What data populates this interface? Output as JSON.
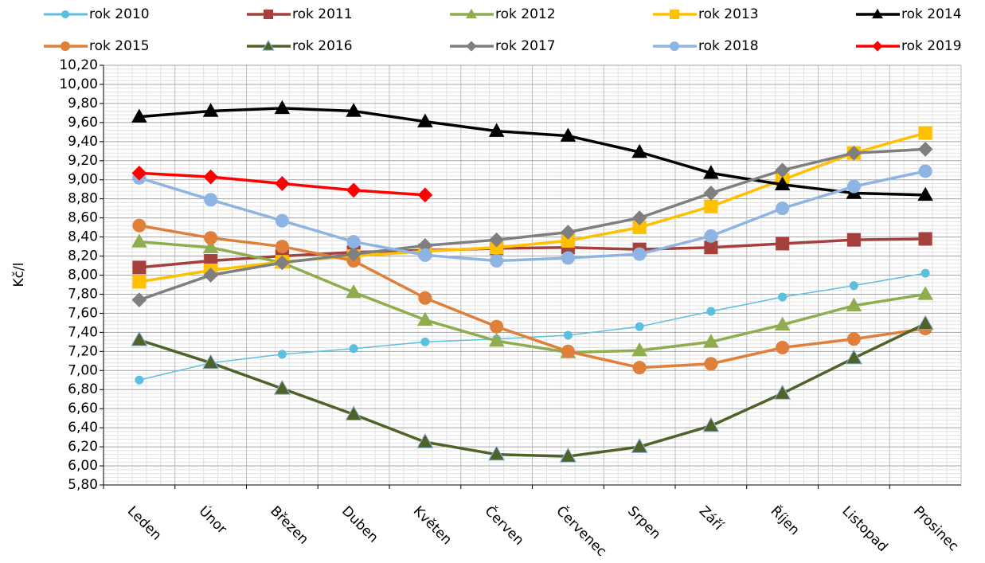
{
  "chart_data": {
    "type": "line",
    "y_label": "Kč/l",
    "categories": [
      "Leden",
      "Únor",
      "Březen",
      "Duben",
      "Květen",
      "Červen",
      "Červenec",
      "Srpen",
      "Září",
      "Říjen",
      "Listopad",
      "Prosinec"
    ],
    "ylim": [
      5.8,
      10.2
    ],
    "yticks": [
      {
        "value": 5.8,
        "label": "5,80"
      },
      {
        "value": 6.0,
        "label": "6,00"
      },
      {
        "value": 6.2,
        "label": "6,20"
      },
      {
        "value": 6.4,
        "label": "6,40"
      },
      {
        "value": 6.6,
        "label": "6,60"
      },
      {
        "value": 6.8,
        "label": "6,80"
      },
      {
        "value": 7.0,
        "label": "7,00"
      },
      {
        "value": 7.2,
        "label": "7,20"
      },
      {
        "value": 7.4,
        "label": "7,40"
      },
      {
        "value": 7.6,
        "label": "7,60"
      },
      {
        "value": 7.8,
        "label": "7,80"
      },
      {
        "value": 8.0,
        "label": "8,00"
      },
      {
        "value": 8.2,
        "label": "8,20"
      },
      {
        "value": 8.4,
        "label": "8,40"
      },
      {
        "value": 8.6,
        "label": "8,60"
      },
      {
        "value": 8.8,
        "label": "8,80"
      },
      {
        "value": 9.0,
        "label": "9,00"
      },
      {
        "value": 9.2,
        "label": "9,20"
      },
      {
        "value": 9.4,
        "label": "9,40"
      },
      {
        "value": 9.6,
        "label": "9,60"
      },
      {
        "value": 9.8,
        "label": "9,80"
      },
      {
        "value": 10.0,
        "label": "10,00"
      },
      {
        "value": 10.2,
        "label": "10,20"
      }
    ],
    "grid": true,
    "legend": "top",
    "series": [
      {
        "name": "rok 2010",
        "color": "#5bbfe0",
        "marker": "circle",
        "line_width": 1.5,
        "values": [
          6.9,
          7.08,
          7.17,
          7.23,
          7.3,
          7.33,
          7.37,
          7.46,
          7.62,
          7.77,
          7.89,
          8.02
        ]
      },
      {
        "name": "rok 2011",
        "color": "#a5403d",
        "marker": "square",
        "line_width": 3.5,
        "values": [
          8.08,
          8.15,
          8.2,
          8.24,
          8.26,
          8.28,
          8.29,
          8.27,
          8.29,
          8.33,
          8.37,
          8.38
        ]
      },
      {
        "name": "rok 2012",
        "color": "#8fad4f",
        "marker": "triangle",
        "line_width": 3.5,
        "values": [
          8.35,
          8.29,
          8.13,
          7.82,
          7.53,
          7.31,
          7.19,
          7.21,
          7.3,
          7.48,
          7.68,
          7.8
        ]
      },
      {
        "name": "rok 2013",
        "color": "#ffc000",
        "marker": "square",
        "line_width": 3.5,
        "values": [
          7.93,
          8.05,
          8.14,
          8.2,
          8.25,
          8.29,
          8.36,
          8.5,
          8.72,
          9.0,
          9.28,
          9.49
        ]
      },
      {
        "name": "rok 2014",
        "color": "#000000",
        "marker": "triangle",
        "line_width": 3.5,
        "values": [
          9.66,
          9.72,
          9.75,
          9.72,
          9.61,
          9.51,
          9.46,
          9.29,
          9.07,
          8.95,
          8.86,
          8.84
        ]
      },
      {
        "name": "rok 2015",
        "color": "#e07f3a",
        "marker": "circle",
        "line_width": 3.5,
        "values": [
          8.52,
          8.39,
          8.3,
          8.15,
          7.76,
          7.46,
          7.2,
          7.03,
          7.07,
          7.24,
          7.33,
          7.44
        ]
      },
      {
        "name": "rok 2016",
        "color": "#4f6228",
        "marker": "triangle",
        "line_width": 3.5,
        "values": [
          7.32,
          7.08,
          6.81,
          6.54,
          6.25,
          6.12,
          6.1,
          6.2,
          6.42,
          6.76,
          7.13,
          7.49
        ]
      },
      {
        "name": "rok 2017",
        "color": "#7f7f7f",
        "marker": "diamond",
        "line_width": 3.5,
        "values": [
          7.74,
          8.0,
          8.13,
          8.22,
          8.31,
          8.37,
          8.45,
          8.6,
          8.86,
          9.1,
          9.28,
          9.32
        ]
      },
      {
        "name": "rok 2018",
        "color": "#8eb4e3",
        "marker": "circle",
        "line_width": 3.5,
        "values": [
          9.02,
          8.79,
          8.57,
          8.35,
          8.21,
          8.15,
          8.18,
          8.22,
          8.41,
          8.7,
          8.93,
          9.09
        ]
      },
      {
        "name": "rok 2019",
        "color": "#ff0000",
        "marker": "diamond",
        "line_width": 3.5,
        "values": [
          9.07,
          9.03,
          8.96,
          8.89,
          8.84,
          null,
          null,
          null,
          null,
          null,
          null,
          null
        ]
      }
    ]
  }
}
